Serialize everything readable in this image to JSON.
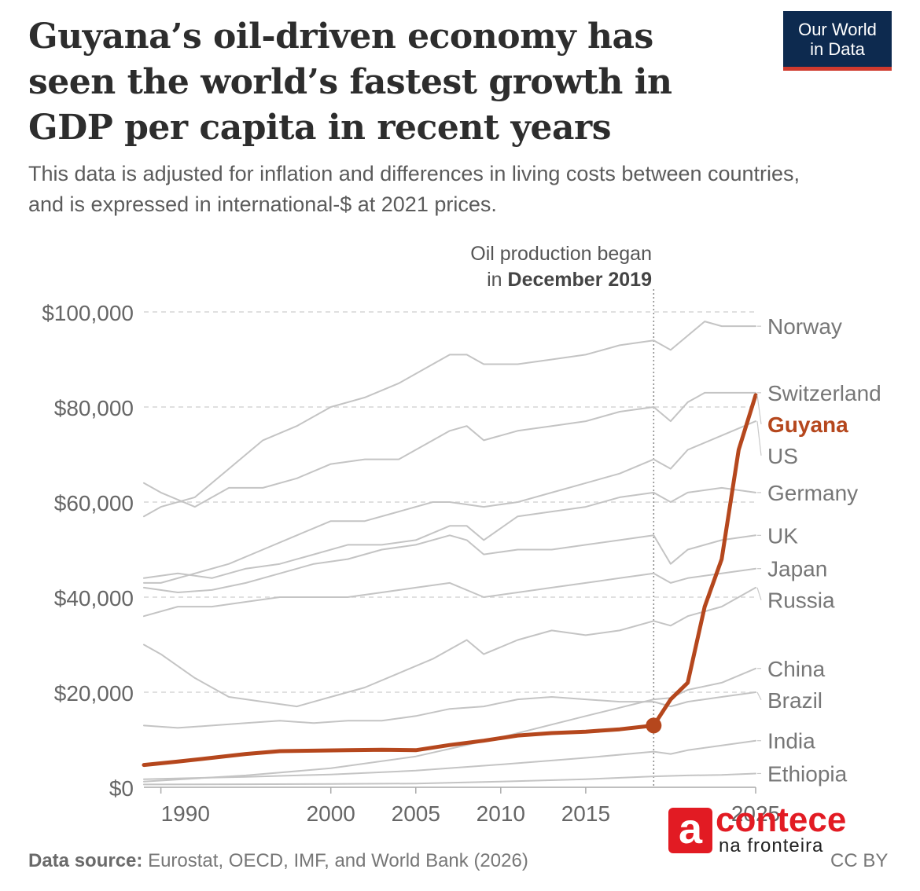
{
  "title": "Guyana’s oil-driven economy has seen the world’s fastest growth in GDP per capita in recent years",
  "subtitle": "This data is adjusted for inflation and differences in living costs between countries, and is expressed in international-$ at 2021 prices.",
  "logo": {
    "line1": "Our World",
    "line2": "in Data",
    "bg_color": "#0d2a4f",
    "accent_color": "#cf3a2e"
  },
  "annotation": {
    "line1": "Oil production began",
    "line2_prefix": "in ",
    "line2_bold": "December 2019",
    "year": 2019
  },
  "footer": {
    "source_label": "Data source:",
    "source_text": "Eurostat, OECD, IMF, and World Bank (2026)",
    "license": "CC BY"
  },
  "watermark": {
    "icon_letter": "a",
    "word": "contece",
    "sub": "na fronteira",
    "color": "#e21b23"
  },
  "chart_data": {
    "type": "line",
    "xlim": [
      1989,
      2025
    ],
    "ylim": [
      0,
      100000
    ],
    "x_ticks": [
      1990,
      2000,
      2005,
      2010,
      2015,
      2025
    ],
    "y_ticks": [
      0,
      20000,
      40000,
      60000,
      80000,
      100000
    ],
    "y_tick_labels": [
      "$0",
      "$20,000",
      "$40,000",
      "$60,000",
      "$80,000",
      "$100,000"
    ],
    "grid": "horizontal dashed",
    "legend": "right-side line labels",
    "colors": {
      "highlight": "#b5471d",
      "others": "#c4c4c4"
    },
    "series": [
      {
        "name": "Norway",
        "highlight": false,
        "x": [
          1989,
          1990,
          1992,
          1994,
          1996,
          1998,
          2000,
          2002,
          2004,
          2006,
          2007,
          2008,
          2009,
          2011,
          2013,
          2015,
          2017,
          2019,
          2020,
          2022,
          2023,
          2025
        ],
        "y": [
          57000,
          59000,
          61000,
          67000,
          73000,
          76000,
          80000,
          82000,
          85000,
          89000,
          91000,
          91000,
          89000,
          89000,
          90000,
          91000,
          93000,
          94000,
          92000,
          98000,
          97000,
          97000
        ]
      },
      {
        "name": "Switzerland",
        "highlight": false,
        "x": [
          1989,
          1990,
          1992,
          1994,
          1996,
          1998,
          2000,
          2002,
          2004,
          2006,
          2007,
          2008,
          2009,
          2011,
          2013,
          2015,
          2017,
          2019,
          2020,
          2021,
          2022,
          2025
        ],
        "y": [
          64000,
          62000,
          59000,
          63000,
          63000,
          65000,
          68000,
          69000,
          69000,
          73000,
          75000,
          76000,
          73000,
          75000,
          76000,
          77000,
          79000,
          80000,
          77000,
          81000,
          83000,
          83000
        ]
      },
      {
        "name": "Guyana",
        "highlight": true,
        "x": [
          1989,
          1991,
          1993,
          1995,
          1997,
          1999,
          2001,
          2003,
          2005,
          2007,
          2009,
          2011,
          2013,
          2015,
          2017,
          2019,
          2020,
          2021,
          2022,
          2023,
          2024,
          2025
        ],
        "y": [
          4700,
          5400,
          6200,
          7000,
          7600,
          7700,
          7800,
          7900,
          7800,
          8900,
          9800,
          10900,
          11400,
          11700,
          12200,
          13000,
          18500,
          22000,
          38000,
          48000,
          71000,
          82500
        ]
      },
      {
        "name": "US",
        "highlight": false,
        "x": [
          1989,
          1990,
          1992,
          1994,
          1996,
          1998,
          2000,
          2002,
          2004,
          2006,
          2007,
          2009,
          2011,
          2013,
          2015,
          2017,
          2019,
          2020,
          2021,
          2023,
          2025
        ],
        "y": [
          43000,
          43000,
          45000,
          47000,
          50000,
          53000,
          56000,
          56000,
          58000,
          60000,
          60000,
          59000,
          60000,
          62000,
          64000,
          66000,
          69000,
          67000,
          71000,
          74000,
          77000
        ]
      },
      {
        "name": "Germany",
        "highlight": false,
        "x": [
          1989,
          1991,
          1993,
          1995,
          1997,
          1999,
          2001,
          2003,
          2005,
          2007,
          2008,
          2009,
          2011,
          2013,
          2015,
          2017,
          2019,
          2020,
          2021,
          2023,
          2025
        ],
        "y": [
          44000,
          45000,
          44000,
          46000,
          47000,
          49000,
          51000,
          51000,
          52000,
          55000,
          55000,
          52000,
          57000,
          58000,
          59000,
          61000,
          62000,
          60000,
          62000,
          63000,
          62000
        ]
      },
      {
        "name": "UK",
        "highlight": false,
        "x": [
          1989,
          1991,
          1993,
          1995,
          1997,
          1999,
          2001,
          2003,
          2005,
          2007,
          2008,
          2009,
          2011,
          2013,
          2015,
          2017,
          2019,
          2020,
          2021,
          2023,
          2025
        ],
        "y": [
          42000,
          41000,
          41500,
          43000,
          45000,
          47000,
          48000,
          50000,
          51000,
          53000,
          52000,
          49000,
          50000,
          50000,
          51000,
          52000,
          53000,
          47000,
          50000,
          52000,
          53000
        ]
      },
      {
        "name": "Japan",
        "highlight": false,
        "x": [
          1989,
          1991,
          1993,
          1995,
          1997,
          1999,
          2001,
          2003,
          2005,
          2007,
          2009,
          2011,
          2013,
          2015,
          2017,
          2019,
          2020,
          2021,
          2023,
          2025
        ],
        "y": [
          36000,
          38000,
          38000,
          39000,
          40000,
          40000,
          40000,
          41000,
          42000,
          43000,
          40000,
          41000,
          42000,
          43000,
          44000,
          45000,
          43000,
          44000,
          45000,
          46000
        ]
      },
      {
        "name": "Russia",
        "highlight": false,
        "x": [
          1989,
          1990,
          1992,
          1994,
          1996,
          1998,
          2000,
          2002,
          2004,
          2006,
          2008,
          2009,
          2011,
          2013,
          2015,
          2017,
          2019,
          2020,
          2021,
          2023,
          2025
        ],
        "y": [
          30000,
          28000,
          23000,
          19000,
          18000,
          17000,
          19000,
          21000,
          24000,
          27000,
          31000,
          28000,
          31000,
          33000,
          32000,
          33000,
          35000,
          34000,
          36000,
          38000,
          42000
        ]
      },
      {
        "name": "China",
        "highlight": false,
        "x": [
          1989,
          1995,
          2000,
          2005,
          2010,
          2015,
          2019,
          2020,
          2021,
          2023,
          2025
        ],
        "y": [
          1200,
          2500,
          4000,
          6500,
          10500,
          15000,
          18500,
          18800,
          20500,
          22000,
          25000
        ]
      },
      {
        "name": "Brazil",
        "highlight": false,
        "x": [
          1989,
          1991,
          1993,
          1995,
          1997,
          1999,
          2001,
          2003,
          2005,
          2007,
          2009,
          2011,
          2013,
          2015,
          2017,
          2019,
          2020,
          2021,
          2023,
          2025
        ],
        "y": [
          13000,
          12500,
          13000,
          13500,
          14000,
          13500,
          14000,
          14000,
          15000,
          16500,
          17000,
          18500,
          19000,
          18500,
          18000,
          18000,
          17000,
          18000,
          19000,
          20000
        ]
      },
      {
        "name": "India",
        "highlight": false,
        "x": [
          1989,
          1995,
          2000,
          2005,
          2010,
          2015,
          2019,
          2020,
          2021,
          2023,
          2025
        ],
        "y": [
          1700,
          2200,
          2700,
          3500,
          4800,
          6200,
          7500,
          7000,
          7800,
          8800,
          9800
        ]
      },
      {
        "name": "Ethiopia",
        "highlight": false,
        "x": [
          1989,
          1995,
          2000,
          2005,
          2010,
          2015,
          2019,
          2021,
          2023,
          2025
        ],
        "y": [
          600,
          650,
          700,
          800,
          1200,
          1700,
          2300,
          2500,
          2600,
          2900
        ]
      }
    ]
  }
}
